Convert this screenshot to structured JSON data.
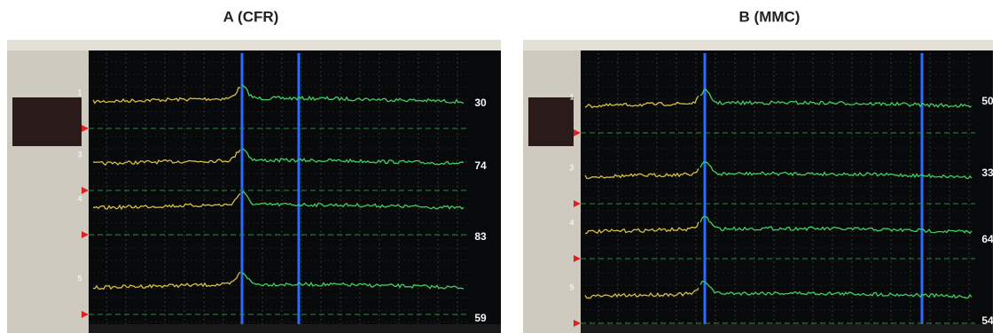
{
  "panels": [
    {
      "label": "A (CFR)",
      "channels": [
        {
          "number": "1",
          "value": "30"
        },
        {
          "number": "3",
          "value": "74"
        },
        {
          "number": "4",
          "value": "83"
        },
        {
          "number": "5",
          "value": "59"
        }
      ]
    },
    {
      "label": "B (MMC)",
      "channels": [
        {
          "number": "1",
          "value": "50"
        },
        {
          "number": "3",
          "value": "33"
        },
        {
          "number": "4",
          "value": "64"
        },
        {
          "number": "5",
          "value": "54"
        }
      ]
    }
  ]
}
